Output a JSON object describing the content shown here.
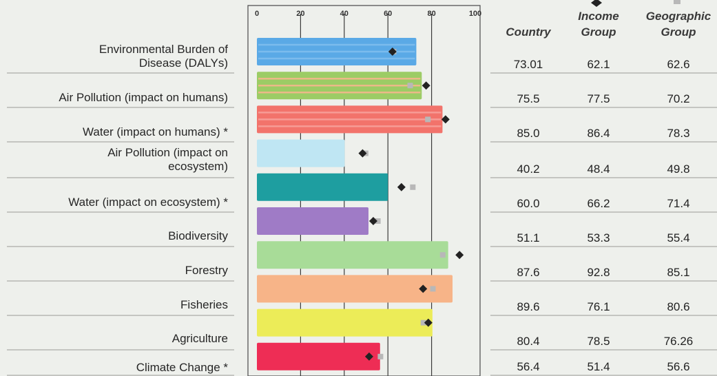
{
  "chart_data": {
    "type": "bar",
    "title": "",
    "xlabel": "",
    "ylabel": "",
    "xlim": [
      0,
      100
    ],
    "xticks": [
      "0",
      "20",
      "40",
      "60",
      "80",
      "100"
    ],
    "grid": true,
    "categories": [
      [
        "Environmental Burden of",
        "Disease (DALYs)"
      ],
      [
        "Air Pollution (impact on humans)"
      ],
      [
        "Water (impact on humans) *"
      ],
      [
        "Air Pollution (impact on",
        "ecosystem)"
      ],
      [
        "Water (impact on ecosystem) *"
      ],
      [
        "Biodiversity"
      ],
      [
        "Forestry"
      ],
      [
        "Fisheries"
      ],
      [
        "Agriculture"
      ],
      [
        "Climate Change *"
      ]
    ],
    "columns": {
      "country": "Country",
      "income": [
        "Income",
        "Group"
      ],
      "geographic": [
        "Geographic",
        "Group"
      ]
    },
    "table": {
      "country": [
        "73.01",
        "75.5",
        "85.0",
        "40.2",
        "60.0",
        "51.1",
        "87.6",
        "89.6",
        "80.4",
        "56.4"
      ],
      "income": [
        "62.1",
        "77.5",
        "86.4",
        "48.4",
        "66.2",
        "53.3",
        "92.8",
        "76.1",
        "78.5",
        "51.4"
      ],
      "geographic": [
        "62.6",
        "70.2",
        "78.3",
        "49.8",
        "71.4",
        "55.4",
        "85.1",
        "80.6",
        "76.26",
        "56.6"
      ]
    },
    "series": [
      {
        "values": [
          73.01,
          75.5,
          85.0,
          40.2,
          60.0,
          51.1,
          87.6,
          89.6,
          80.4,
          56.4
        ]
      },
      {
        "marker": "diamond",
        "values": [
          62.1,
          77.5,
          86.4,
          48.4,
          66.2,
          53.3,
          92.8,
          76.1,
          78.5,
          51.4
        ]
      },
      {
        "marker": "square",
        "values": [
          62.6,
          70.2,
          78.3,
          49.8,
          71.4,
          55.4,
          85.1,
          80.6,
          76.26,
          56.6
        ]
      }
    ],
    "bar_colors": [
      "#5aa9e6",
      "#9ccc65",
      "#f2736b",
      "#bfe6f3",
      "#1e9ea0",
      "#9f7bc6",
      "#a8dc98",
      "#f7b488",
      "#ecec58",
      "#ee2d55"
    ],
    "stripe_colors": [
      "#7fbdee",
      "#f5b78c",
      "#f7a19a",
      null,
      null,
      null,
      null,
      null,
      null,
      null
    ],
    "diamond_color": "#222222",
    "square_color": "#b8b8b8"
  }
}
